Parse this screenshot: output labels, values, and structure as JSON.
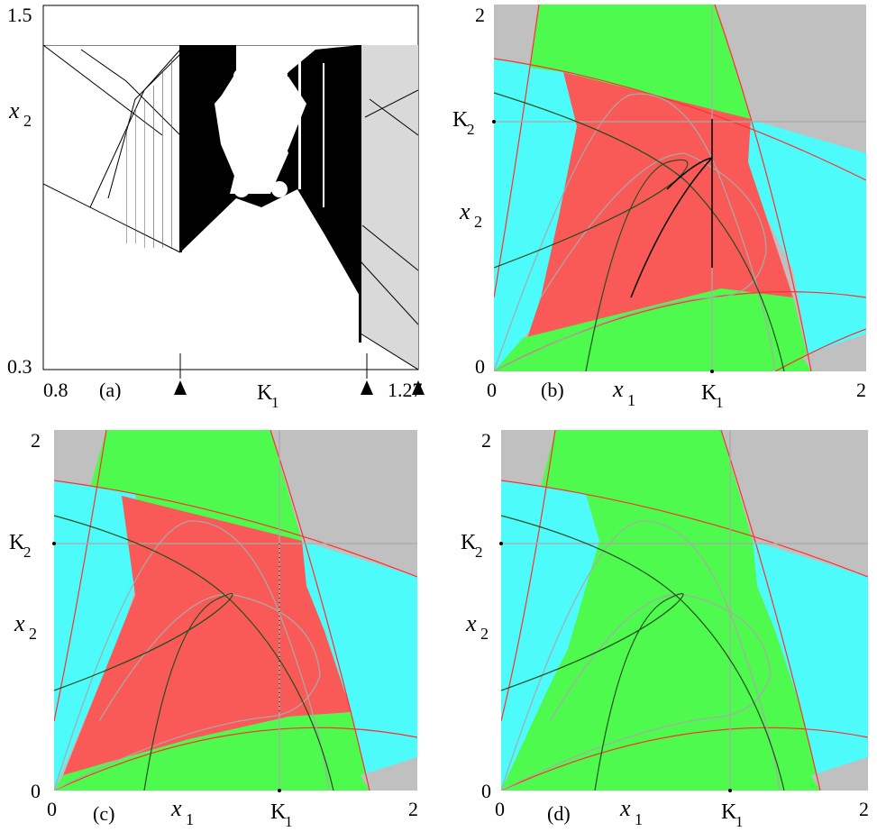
{
  "figure": {
    "panels": [
      {
        "id": "a",
        "label": "(a)",
        "xlabel": "K",
        "xlabel_sub": "1",
        "ylabel": "x",
        "ylabel_sub": "2",
        "xticks": [
          "0.8",
          "1.27"
        ],
        "yticks": [
          "1.5",
          "0.3"
        ],
        "markers_count": 3
      },
      {
        "id": "b",
        "label": "(b)",
        "xlabel": "x",
        "xlabel_sub": "1",
        "ylabel": "x",
        "ylabel_sub": "2",
        "xticks": [
          "0",
          "2"
        ],
        "yticks": [
          "2",
          "0"
        ],
        "xmark": "K",
        "xmark_sub": "1",
        "ymark": "K",
        "ymark_sub": "2"
      },
      {
        "id": "c",
        "label": "(c)",
        "xlabel": "x",
        "xlabel_sub": "1",
        "ylabel": "x",
        "ylabel_sub": "2",
        "xticks": [
          "0",
          "2"
        ],
        "yticks": [
          "2",
          "0"
        ],
        "xmark": "K",
        "xmark_sub": "1",
        "ymark": "K",
        "ymark_sub": "2"
      },
      {
        "id": "d",
        "label": "(d)",
        "xlabel": "x",
        "xlabel_sub": "1",
        "ylabel": "x",
        "ylabel_sub": "2",
        "xticks": [
          "0",
          "2"
        ],
        "yticks": [
          "2",
          "0"
        ],
        "xmark": "K",
        "xmark_sub": "1",
        "ymark": "K",
        "ymark_sub": "2"
      }
    ],
    "colors": {
      "gray": "#c0c0c0",
      "green": "#4dfa4d",
      "cyan": "#4dfbfb",
      "red": "#fa5a57",
      "curve_red": "#ff3030",
      "curve_gray": "#a9a9a9",
      "curve_dark": "#1f4d1f",
      "black": "#000000"
    }
  },
  "chart_data": [
    {
      "type": "scatter",
      "panel": "a",
      "title": "",
      "xlabel": "K1",
      "ylabel": "x2",
      "xlim": [
        0.8,
        1.27
      ],
      "ylim": [
        0.3,
        1.5
      ],
      "description_markers": "triangle markers below x-axis",
      "marker_k1": [
        1.0,
        1.18,
        1.27
      ]
    },
    {
      "type": "heatmap",
      "panel": "b",
      "xlabel": "x1",
      "ylabel": "x2",
      "xlim": [
        0,
        2
      ],
      "ylim": [
        0,
        2
      ],
      "regions": [
        "gray",
        "green",
        "cyan",
        "red"
      ]
    },
    {
      "type": "heatmap",
      "panel": "c",
      "xlabel": "x1",
      "ylabel": "x2",
      "xlim": [
        0,
        2
      ],
      "ylim": [
        0,
        2
      ],
      "regions": [
        "gray",
        "green",
        "cyan",
        "red"
      ]
    },
    {
      "type": "heatmap",
      "panel": "d",
      "xlabel": "x1",
      "ylabel": "x2",
      "xlim": [
        0,
        2
      ],
      "ylim": [
        0,
        2
      ],
      "regions": [
        "gray",
        "green",
        "cyan"
      ]
    }
  ]
}
